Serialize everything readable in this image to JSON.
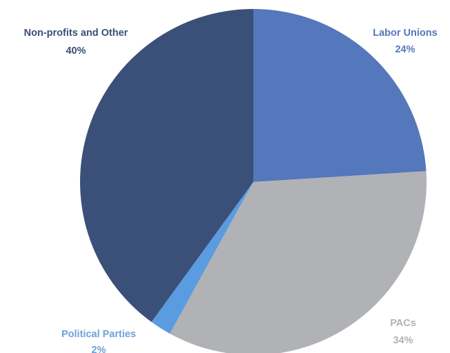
{
  "chart_data": {
    "type": "pie",
    "title": "",
    "start_angle_deg": 0,
    "direction": "clockwise",
    "slices": [
      {
        "label": "Labor Unions",
        "value": 24,
        "value_label": "24%",
        "color": "#5577bb",
        "label_color": "#5577bb"
      },
      {
        "label": "PACs",
        "value": 34,
        "value_label": "34%",
        "color": "#b1b2b6",
        "label_color": "#b1b2b6"
      },
      {
        "label": "Political Parties",
        "value": 2,
        "value_label": "2%",
        "color": "#5b9be0",
        "label_color": "#6ea1da"
      },
      {
        "label": "Non-profits and Other",
        "value": 40,
        "value_label": "40%",
        "color": "#3a5078",
        "label_color": "#3a5078"
      }
    ]
  }
}
